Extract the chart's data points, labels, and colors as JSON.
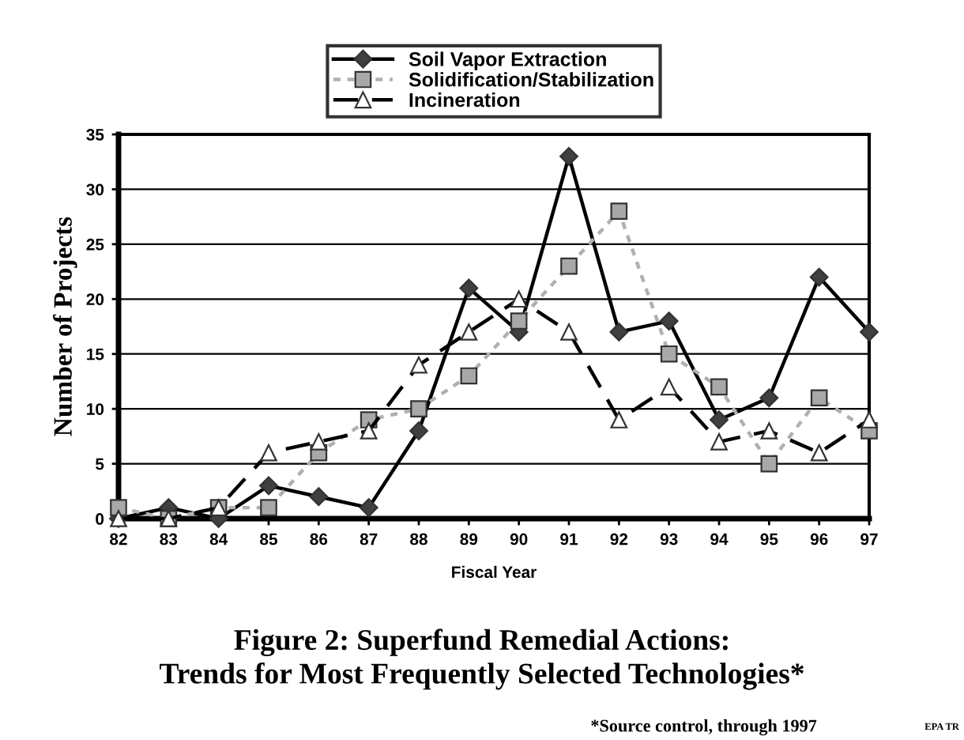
{
  "chart_data": {
    "type": "line",
    "title": "Figure 2: Superfund Remedial Actions:\nTrends for Most Frequently Selected Technologies*",
    "xlabel": "Fiscal Year",
    "ylabel": "Number of Projects",
    "categories": [
      "82",
      "83",
      "84",
      "85",
      "86",
      "87",
      "88",
      "89",
      "90",
      "91",
      "92",
      "93",
      "94",
      "95",
      "96",
      "97"
    ],
    "series": [
      {
        "name": "Soil Vapor Extraction",
        "color": "#000000",
        "marker": "diamond",
        "line_style": "solid",
        "values": [
          0,
          1,
          0,
          3,
          2,
          1,
          8,
          21,
          17,
          33,
          17,
          18,
          9,
          11,
          22,
          17
        ]
      },
      {
        "name": "Solidification/Stabilization",
        "color": "#b0b0b0",
        "marker": "square",
        "line_style": "dotted",
        "values": [
          1,
          0,
          1,
          1,
          6,
          9,
          10,
          13,
          18,
          23,
          28,
          15,
          12,
          5,
          11,
          8
        ]
      },
      {
        "name": "Incineration",
        "color": "#000000",
        "marker": "triangle",
        "line_style": "dashed",
        "values": [
          0,
          0,
          1,
          6,
          7,
          8,
          14,
          17,
          20,
          17,
          9,
          12,
          7,
          8,
          6,
          9
        ]
      }
    ],
    "ylim": [
      0,
      35
    ],
    "yticks": [
      0,
      5,
      10,
      15,
      20,
      25,
      30,
      35
    ],
    "grid": "y",
    "legend": "top",
    "annotations": [
      "*Source control, through 1997",
      "EPA TR"
    ]
  }
}
